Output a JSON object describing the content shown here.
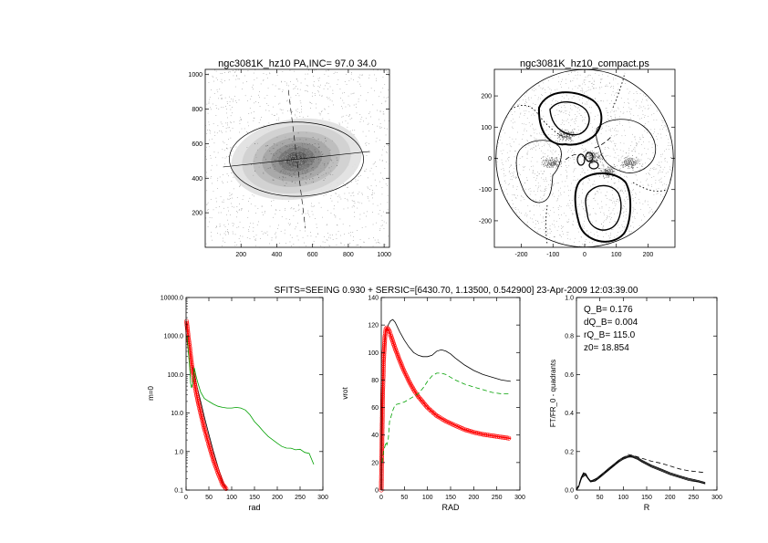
{
  "header": {
    "text": "SFITS=SEEING 0.930 + SERSIC=[6430.70, 1.13500, 0.542900]  23-Apr-2009 12:03:39.00"
  },
  "colors": {
    "black": "#000000",
    "red": "#ff0000",
    "green": "#00a000",
    "gray": "#555555"
  },
  "chart_data": [
    {
      "id": "image",
      "type": "scatter",
      "title": "ngc3081K_hz10 PA,INC= 97.0 34.0",
      "xlim": [
        0,
        1030
      ],
      "ylim": [
        0,
        1030
      ],
      "xticks": [
        200,
        400,
        600,
        800,
        1000
      ],
      "yticks": [
        200,
        400,
        600,
        800,
        1000
      ],
      "ellipse": {
        "center": [
          510,
          510
        ],
        "semi_axes": [
          375,
          215
        ]
      },
      "major_axis": [
        [
          100,
          465
        ],
        [
          920,
          555
        ]
      ],
      "minor_axis": [
        [
          465,
          910
        ],
        [
          560,
          110
        ]
      ]
    },
    {
      "id": "contours",
      "type": "scatter",
      "title": "ngc3081K_hz10_compact.ps",
      "xlim": [
        -285,
        285
      ],
      "ylim": [
        -285,
        285
      ],
      "xticks": [
        -200,
        -100,
        0,
        100,
        200
      ],
      "yticks": [
        -200,
        -100,
        0,
        100,
        200
      ],
      "circle_radius": 280
    },
    {
      "id": "m0",
      "type": "line",
      "xlabel": "rad",
      "ylabel": "m=0",
      "yscale": "log",
      "xlim": [
        0,
        300
      ],
      "ylim": [
        0.1,
        10000
      ],
      "xticks": [
        "0",
        "50",
        "100",
        "150",
        "200",
        "250",
        "300"
      ],
      "yticks": [
        "0.1",
        "1.0",
        "10.0",
        "100.0",
        "1000.0",
        "10000.0"
      ],
      "series": [
        {
          "color": "black",
          "x": [
            1,
            3,
            5,
            8,
            10,
            12,
            15,
            18,
            22,
            27,
            32,
            40,
            50,
            60,
            70,
            80,
            90
          ],
          "y": [
            2300,
            1500,
            900,
            500,
            300,
            200,
            150,
            100,
            60,
            35,
            20,
            8,
            2.8,
            1.0,
            0.4,
            0.17,
            0.1
          ]
        },
        {
          "color": "red",
          "marker": "circle",
          "x": [
            1,
            3,
            5,
            8,
            10,
            12,
            15,
            18,
            22,
            27,
            32,
            40,
            50,
            60,
            70,
            80,
            90,
            95
          ],
          "y": [
            2400,
            1500,
            900,
            500,
            300,
            190,
            110,
            65,
            35,
            18,
            10,
            4,
            1.5,
            0.6,
            0.28,
            0.14,
            0.1,
            0.09
          ]
        },
        {
          "color": "green",
          "x": [
            2,
            5,
            8,
            10,
            12,
            15,
            18,
            22,
            26,
            32,
            40,
            50,
            60,
            70,
            80,
            90,
            100,
            110,
            120,
            130,
            140,
            150,
            160,
            170,
            180,
            190,
            200,
            210,
            220,
            230,
            240,
            250,
            260,
            270,
            280
          ],
          "y": [
            1000,
            400,
            150,
            60,
            45,
            60,
            150,
            90,
            60,
            35,
            24,
            20,
            17,
            15,
            14,
            13.5,
            13.5,
            14,
            13.5,
            12,
            9,
            6,
            4.5,
            3.2,
            2.5,
            2.0,
            1.6,
            1.4,
            1.3,
            1.25,
            1.2,
            1.1,
            1.0,
            0.9,
            0.45
          ]
        }
      ]
    },
    {
      "id": "vrot",
      "type": "line",
      "xlabel": "RAD",
      "ylabel": "vrot",
      "xlim": [
        0,
        300
      ],
      "ylim": [
        0,
        140
      ],
      "xticks": [
        "0",
        "50",
        "100",
        "150",
        "200",
        "250",
        "300"
      ],
      "yticks": [
        "0",
        "20",
        "40",
        "60",
        "80",
        "100",
        "120",
        "140"
      ],
      "series": [
        {
          "color": "black",
          "x": [
            0,
            5,
            10,
            15,
            20,
            25,
            30,
            40,
            50,
            60,
            70,
            80,
            90,
            100,
            110,
            120,
            130,
            140,
            150,
            160,
            180,
            200,
            220,
            240,
            260,
            280
          ],
          "y": [
            0,
            95,
            115,
            120,
            123,
            124,
            122,
            115,
            109,
            104,
            100,
            98,
            97,
            97,
            98,
            101,
            102,
            101,
            99,
            96,
            91,
            87,
            84,
            82,
            80,
            79
          ]
        },
        {
          "color": "red",
          "marker": "circle",
          "x": [
            0,
            3,
            5,
            8,
            10,
            12,
            15,
            18,
            20,
            25,
            30,
            40,
            50,
            60,
            70,
            80,
            90,
            100,
            120,
            140,
            160,
            180,
            200,
            220,
            240,
            260,
            280
          ],
          "y": [
            0,
            70,
            95,
            112,
            117,
            118,
            117,
            115,
            113,
            108,
            103,
            94,
            86,
            79,
            73,
            68,
            64,
            60,
            54,
            50,
            47,
            44,
            42,
            40.5,
            39.5,
            38.5,
            37.5
          ]
        },
        {
          "color": "green",
          "dashed": true,
          "x": [
            2,
            5,
            8,
            10,
            12,
            15,
            18,
            20,
            25,
            30,
            40,
            50,
            60,
            70,
            80,
            90,
            100,
            110,
            120,
            130,
            140,
            160,
            180,
            200,
            220,
            240,
            260,
            280
          ],
          "y": [
            20,
            28,
            32,
            35,
            33,
            36,
            50,
            52,
            58,
            62,
            63,
            64,
            66,
            68,
            70,
            74,
            79,
            83,
            85,
            85,
            84,
            80,
            77,
            75,
            73,
            71,
            70,
            70
          ]
        }
      ]
    },
    {
      "id": "q",
      "type": "line",
      "xlabel": "R",
      "ylabel": "FT/FR_0 - quadrants",
      "xlim": [
        0,
        300
      ],
      "ylim": [
        0,
        1
      ],
      "xticks": [
        "0",
        "50",
        "100",
        "150",
        "200",
        "250",
        "300"
      ],
      "yticks": [
        "0.0",
        "0.2",
        "0.4",
        "0.6",
        "0.8",
        "1.0"
      ],
      "annotations": [
        "Q_B=  0.176",
        "dQ_B=  0.004",
        "rQ_B=  115.0",
        "z0= 18.854"
      ],
      "series": [
        {
          "color": "black",
          "x": [
            0,
            5,
            10,
            15,
            20,
            25,
            30,
            40,
            50,
            60,
            70,
            80,
            90,
            100,
            110,
            115,
            120,
            130,
            140,
            160,
            180,
            200,
            220,
            240,
            260,
            275
          ],
          "y": [
            0,
            0.02,
            0.06,
            0.085,
            0.08,
            0.06,
            0.045,
            0.05,
            0.07,
            0.09,
            0.11,
            0.13,
            0.15,
            0.165,
            0.174,
            0.176,
            0.174,
            0.165,
            0.15,
            0.125,
            0.105,
            0.085,
            0.07,
            0.055,
            0.045,
            0.035
          ]
        },
        {
          "color": "black",
          "x": [
            0,
            5,
            10,
            15,
            20,
            25,
            30,
            40,
            50,
            60,
            70,
            80,
            90,
            100,
            110,
            115,
            120,
            130,
            140,
            160,
            180,
            200,
            220,
            240,
            260,
            275
          ],
          "y": [
            0,
            0.022,
            0.065,
            0.09,
            0.085,
            0.062,
            0.048,
            0.055,
            0.075,
            0.095,
            0.115,
            0.135,
            0.155,
            0.17,
            0.178,
            0.18,
            0.178,
            0.17,
            0.155,
            0.13,
            0.11,
            0.09,
            0.075,
            0.06,
            0.05,
            0.04
          ]
        },
        {
          "color": "black",
          "x": [
            0,
            5,
            10,
            15,
            20,
            25,
            30,
            40,
            50,
            60,
            70,
            80,
            90,
            100,
            110,
            115,
            120,
            130,
            140,
            160,
            180,
            200,
            220,
            240,
            260,
            275
          ],
          "y": [
            0,
            0.018,
            0.055,
            0.08,
            0.075,
            0.058,
            0.042,
            0.047,
            0.065,
            0.085,
            0.105,
            0.125,
            0.145,
            0.16,
            0.17,
            0.172,
            0.17,
            0.16,
            0.145,
            0.12,
            0.1,
            0.08,
            0.065,
            0.05,
            0.042,
            0.032
          ]
        },
        {
          "color": "black",
          "dashed": true,
          "x": [
            0,
            10,
            20,
            30,
            50,
            70,
            90,
            110,
            120,
            140,
            160,
            180,
            200,
            220,
            240,
            260,
            275
          ],
          "y": [
            0,
            0.06,
            0.08,
            0.045,
            0.07,
            0.11,
            0.15,
            0.185,
            0.18,
            0.165,
            0.15,
            0.14,
            0.125,
            0.11,
            0.1,
            0.095,
            0.09
          ]
        }
      ]
    }
  ]
}
